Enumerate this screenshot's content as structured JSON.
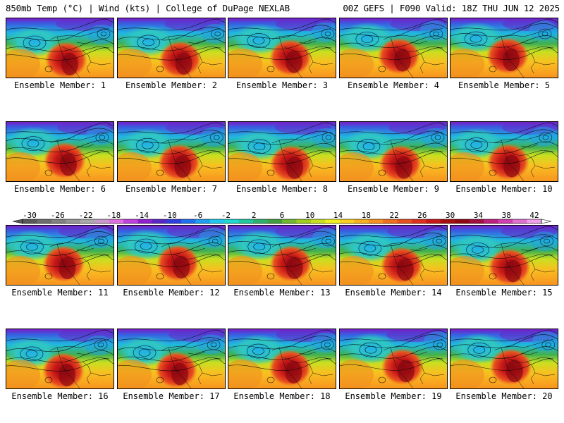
{
  "header": {
    "left_title": "850mb Temp (°C) | Wind (kts) | College of DuPage NEXLAB",
    "right_title": "00Z GEFS | F090 Valid: 18Z THU JUN 12 2025"
  },
  "panels": [
    {
      "caption": "Ensemble Member: 1"
    },
    {
      "caption": "Ensemble Member: 2"
    },
    {
      "caption": "Ensemble Member: 3"
    },
    {
      "caption": "Ensemble Member: 4"
    },
    {
      "caption": "Ensemble Member: 5"
    },
    {
      "caption": "Ensemble Member: 6"
    },
    {
      "caption": "Ensemble Member: 7"
    },
    {
      "caption": "Ensemble Member: 8"
    },
    {
      "caption": "Ensemble Member: 9"
    },
    {
      "caption": "Ensemble Member: 10"
    },
    {
      "caption": "Ensemble Member: 11"
    },
    {
      "caption": "Ensemble Member: 12"
    },
    {
      "caption": "Ensemble Member: 13"
    },
    {
      "caption": "Ensemble Member: 14"
    },
    {
      "caption": "Ensemble Member: 15"
    },
    {
      "caption": "Ensemble Member: 16"
    },
    {
      "caption": "Ensemble Member: 17"
    },
    {
      "caption": "Ensemble Member: 18"
    },
    {
      "caption": "Ensemble Member: 19"
    },
    {
      "caption": "Ensemble Member: 20"
    }
  ],
  "colorbar": {
    "tick_labels": [
      "-30",
      "-26",
      "-22",
      "-18",
      "-14",
      "-10",
      "-6",
      "-2",
      "2",
      "6",
      "10",
      "14",
      "18",
      "22",
      "26",
      "30",
      "34",
      "38",
      "42"
    ],
    "colors": [
      "#5a5a5a",
      "#6e6e6e",
      "#828282",
      "#969696",
      "#aaaaaa",
      "#c89ac8",
      "#e070e0",
      "#c040e0",
      "#9020d0",
      "#5a28c8",
      "#3040e0",
      "#2070f0",
      "#20a0f0",
      "#20c8f0",
      "#20d8d0",
      "#20c8a0",
      "#30b070",
      "#40a040",
      "#70b830",
      "#a0cc20",
      "#c8e020",
      "#f0f020",
      "#f8d020",
      "#f8b020",
      "#f89020",
      "#f07020",
      "#e85020",
      "#e03020",
      "#c81818",
      "#a81010",
      "#900810",
      "#a01040",
      "#c02080",
      "#d040b0",
      "#e070d0",
      "#f0a0e8"
    ]
  }
}
